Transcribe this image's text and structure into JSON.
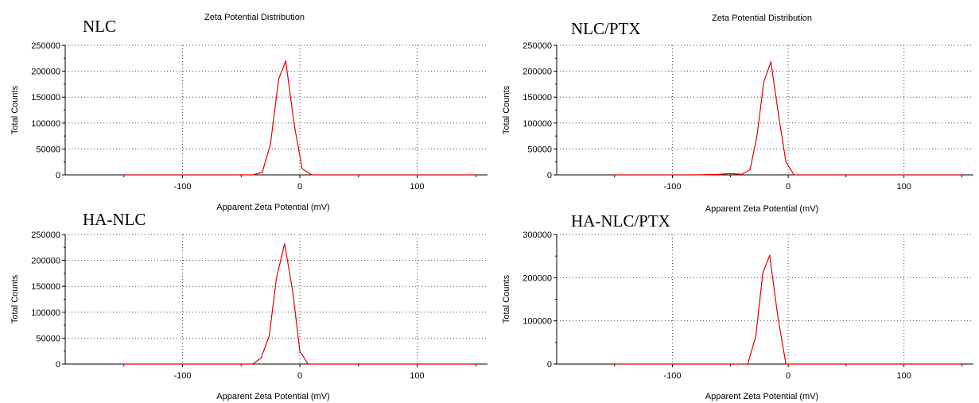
{
  "chart_data": [
    {
      "type": "line",
      "label": "NLC",
      "title": "Zeta Potential Distribution",
      "xlabel": "Apparent Zeta Potential (mV)",
      "ylabel": "Total Counts",
      "xlim": [
        -200,
        160
      ],
      "ylim": [
        0,
        250000
      ],
      "x_ticks": [
        -100,
        0,
        100
      ],
      "x_tick_labels": [
        "-100",
        "0",
        "100"
      ],
      "y_ticks": [
        0,
        50000,
        100000,
        150000,
        200000,
        250000
      ],
      "y_tick_labels": [
        "0",
        "50000",
        "100000",
        "150000",
        "200000",
        "250000"
      ],
      "grid": true,
      "line_color": "#e00000",
      "series": [
        {
          "x": [
            -150,
            -40,
            -32,
            -25,
            -18,
            -12,
            -5,
            2,
            10,
            150
          ],
          "y": [
            0,
            0,
            5000,
            60000,
            185000,
            220000,
            100000,
            12000,
            0,
            0
          ]
        }
      ]
    },
    {
      "type": "line",
      "label": "NLC/PTX",
      "title": "Zeta Potential Distribution",
      "xlabel": "Apparent Zeta Potential (mV)",
      "ylabel": "Total Counts",
      "xlim": [
        -200,
        160
      ],
      "ylim": [
        0,
        250000
      ],
      "x_ticks": [
        -100,
        0,
        100
      ],
      "x_tick_labels": [
        "-100",
        "0",
        "100"
      ],
      "y_ticks": [
        0,
        50000,
        100000,
        150000,
        200000,
        250000
      ],
      "y_tick_labels": [
        "0",
        "50000",
        "100000",
        "150000",
        "200000",
        "250000"
      ],
      "grid": true,
      "line_color": "#e00000",
      "series": [
        {
          "x": [
            -150,
            -80,
            -60,
            -50,
            -40,
            -33,
            -27,
            -21,
            -15,
            -8,
            -2,
            5,
            150
          ],
          "y": [
            0,
            0,
            1000,
            2500,
            1000,
            10000,
            75000,
            180000,
            218000,
            110000,
            25000,
            0,
            0
          ]
        }
      ]
    },
    {
      "type": "line",
      "label": "HA-NLC",
      "title": "",
      "xlabel": "Apparent Zeta Potential (mV)",
      "ylabel": "Total Counts",
      "xlim": [
        -200,
        160
      ],
      "ylim": [
        0,
        250000
      ],
      "x_ticks": [
        -100,
        0,
        100
      ],
      "x_tick_labels": [
        "-100",
        "0",
        "100"
      ],
      "y_ticks": [
        0,
        50000,
        100000,
        150000,
        200000,
        250000
      ],
      "y_tick_labels": [
        "0",
        "50000",
        "100000",
        "150000",
        "200000",
        "250000"
      ],
      "grid": true,
      "line_color": "#e00000",
      "series": [
        {
          "x": [
            -150,
            -40,
            -33,
            -26,
            -20,
            -13,
            -6,
            0,
            7,
            150
          ],
          "y": [
            0,
            0,
            12000,
            55000,
            165000,
            232000,
            140000,
            25000,
            0,
            0
          ]
        }
      ]
    },
    {
      "type": "line",
      "label": "HA-NLC/PTX",
      "title": "",
      "xlabel": "Apparent Zeta Potential (mV)",
      "ylabel": "Total Counts",
      "xlim": [
        -200,
        160
      ],
      "ylim": [
        0,
        300000
      ],
      "x_ticks": [
        -100,
        0,
        100
      ],
      "x_tick_labels": [
        "-100",
        "0",
        "100"
      ],
      "y_ticks": [
        0,
        100000,
        200000,
        300000
      ],
      "y_tick_labels": [
        "0",
        "100000",
        "200000",
        "300000"
      ],
      "grid": true,
      "line_color": "#e00000",
      "series": [
        {
          "x": [
            -150,
            -35,
            -28,
            -22,
            -16,
            -9,
            -2,
            150
          ],
          "y": [
            0,
            0,
            65000,
            210000,
            252000,
            110000,
            0,
            0
          ]
        }
      ]
    }
  ]
}
